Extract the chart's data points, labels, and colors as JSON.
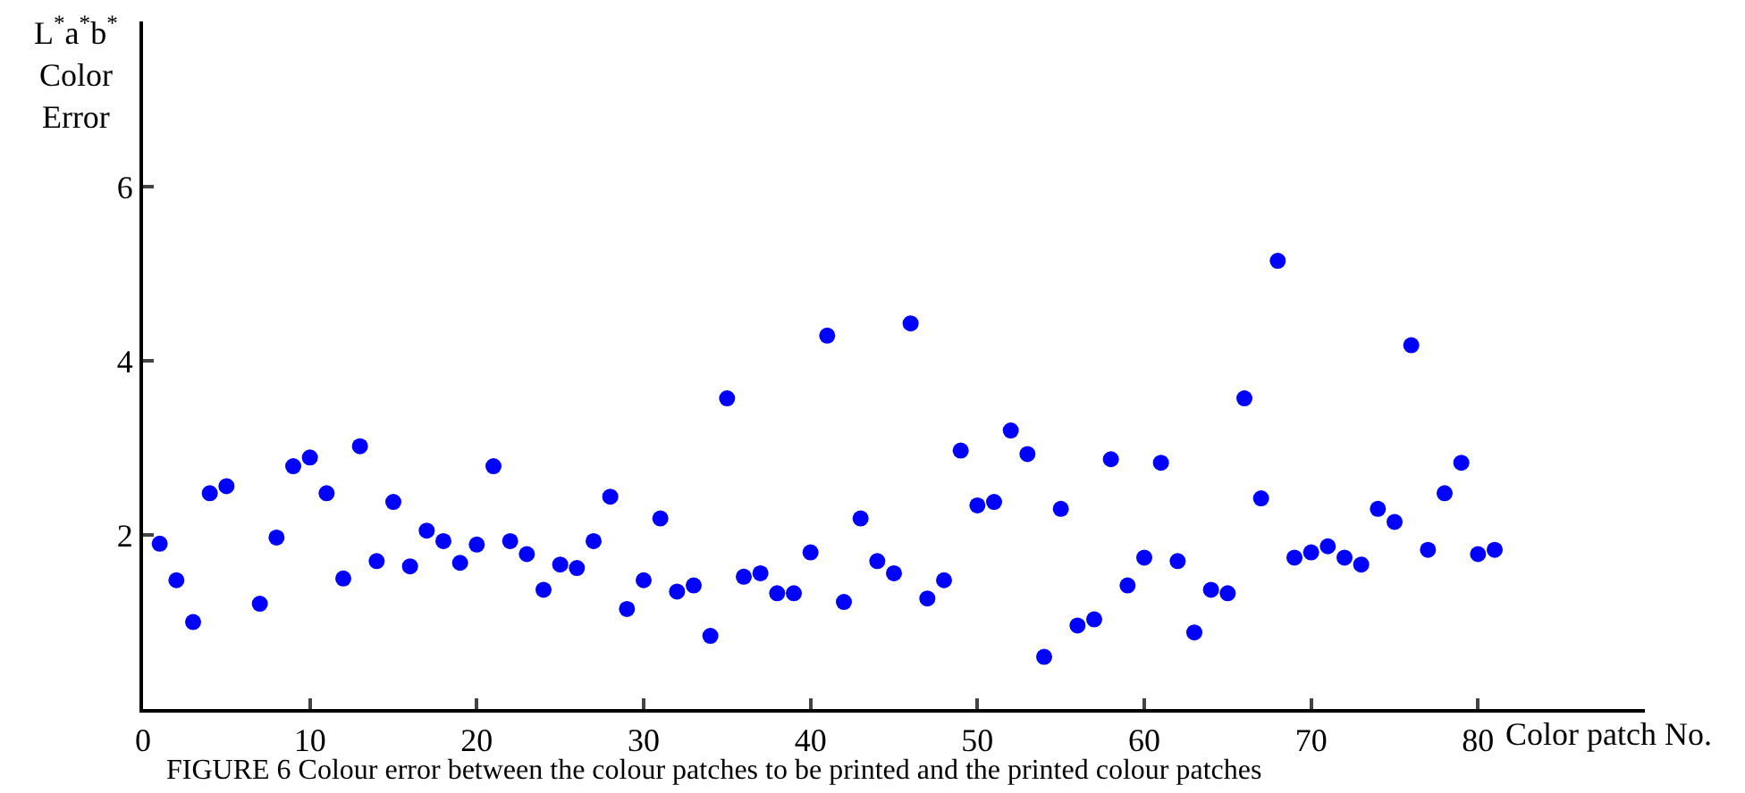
{
  "chart_data": {
    "type": "scatter",
    "xlabel": "Color patch No.",
    "ylabel": "L$^{*}$a$^{*}$b$^{*}$\nColor\nError",
    "annotations": [
      "FIGURE 6 Colour error between the colour patches to be printed and the printed colour patches"
    ],
    "x": [
      1,
      2,
      3,
      4,
      5,
      7,
      8,
      9,
      10,
      11,
      12,
      13,
      14,
      15,
      16,
      17,
      18,
      19,
      20,
      21,
      22,
      23,
      24,
      25,
      26,
      27,
      28,
      29,
      30,
      31,
      32,
      33,
      34,
      35,
      36,
      37,
      38,
      39,
      40,
      41,
      42,
      43,
      44,
      45,
      46,
      47,
      48,
      49,
      50,
      51,
      52,
      53,
      54,
      55,
      56,
      57,
      58,
      59,
      60,
      61,
      62,
      63,
      64,
      65,
      66,
      67,
      68,
      69,
      70,
      71,
      72,
      73,
      74,
      75,
      76,
      77,
      78,
      79,
      80,
      81
    ],
    "series": [
      {
        "color": "#0000ff",
        "values": [
          1.9,
          1.48,
          1.0,
          2.48,
          2.56,
          1.21,
          1.97,
          2.79,
          2.89,
          2.48,
          1.5,
          3.02,
          1.7,
          2.38,
          1.64,
          2.05,
          1.93,
          1.68,
          1.89,
          2.79,
          1.93,
          1.78,
          1.37,
          1.66,
          1.62,
          1.93,
          2.44,
          1.15,
          1.48,
          2.19,
          1.35,
          1.42,
          0.84,
          3.57,
          1.52,
          1.56,
          1.33,
          1.33,
          1.8,
          4.29,
          1.23,
          2.19,
          1.7,
          1.56,
          4.43,
          1.27,
          1.48,
          2.97,
          2.34,
          2.38,
          3.2,
          2.93,
          0.6,
          2.3,
          0.96,
          1.03,
          2.87,
          1.42,
          1.74,
          2.83,
          1.7,
          0.88,
          1.37,
          1.33,
          3.57,
          2.42,
          5.15,
          1.74,
          1.8,
          1.87,
          1.74,
          1.66,
          2.3,
          2.15,
          4.18,
          1.83,
          2.48,
          2.83,
          1.78,
          1.83
        ]
      }
    ],
    "xlim": [
      0,
      90
    ],
    "xticks": [
      0,
      10,
      20,
      30,
      40,
      50,
      60,
      70,
      80
    ],
    "ylim": [
      0,
      7.9
    ],
    "yticks": [
      2,
      4,
      6
    ],
    "marker": "circle"
  }
}
